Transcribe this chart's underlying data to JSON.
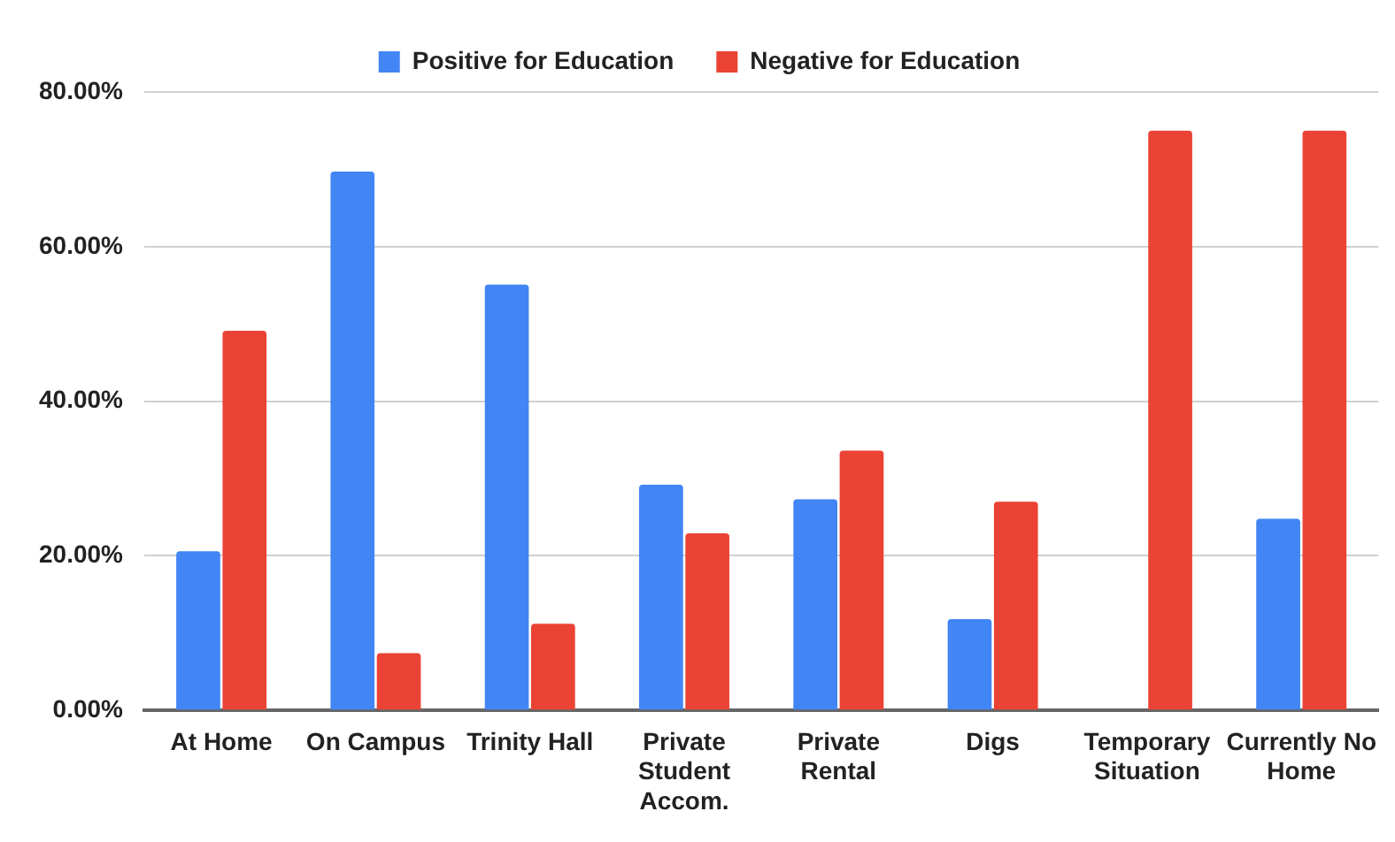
{
  "chart_data": {
    "type": "bar",
    "categories": [
      "At Home",
      "On Campus",
      "Trinity Hall",
      "Private Student Accom.",
      "Private Rental",
      "Digs",
      "Temporary Situation",
      "Currently No Home"
    ],
    "series": [
      {
        "name": "Positive for Education",
        "color": "#4285f4",
        "values": [
          20.6,
          69.7,
          55.1,
          29.2,
          27.3,
          11.8,
          0,
          24.8
        ]
      },
      {
        "name": "Negative for Education",
        "color": "#ea4335",
        "values": [
          49.1,
          7.4,
          11.2,
          22.9,
          33.6,
          27.0,
          75,
          75
        ]
      }
    ],
    "ylim": [
      0,
      80
    ],
    "yticks": [
      {
        "value": 0,
        "label": "0.00%"
      },
      {
        "value": 20,
        "label": "20.00%"
      },
      {
        "value": 40,
        "label": "40.00%"
      },
      {
        "value": 60,
        "label": "60.00%"
      },
      {
        "value": 80,
        "label": "80.00%"
      }
    ],
    "grid": "y",
    "legend": "top"
  }
}
